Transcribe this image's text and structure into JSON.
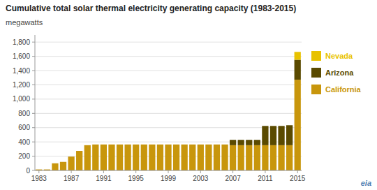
{
  "chart_data": {
    "type": "bar",
    "stacked": true,
    "title": "Cumulative total solar thermal electricity generating capacity (1983-2015)",
    "y_label": "megawatts",
    "annotations": [
      "eia"
    ],
    "categories": [
      "1983",
      null,
      null,
      null,
      "1987",
      null,
      null,
      null,
      "1991",
      null,
      null,
      null,
      "1995",
      null,
      null,
      null,
      "1999",
      null,
      null,
      null,
      "2003",
      null,
      null,
      null,
      "2007",
      null,
      null,
      null,
      "2011",
      null,
      null,
      null,
      "2015"
    ],
    "series": [
      {
        "name": "California",
        "color": "#c8960c",
        "values": [
          14,
          14,
          100,
          120,
          194,
          274,
          354,
          364,
          364,
          364,
          364,
          364,
          364,
          364,
          364,
          364,
          364,
          364,
          364,
          364,
          364,
          364,
          364,
          364,
          354,
          354,
          354,
          354,
          354,
          354,
          354,
          354,
          1272
        ]
      },
      {
        "name": "Arizona",
        "color": "#5a4a00",
        "values": [
          0,
          0,
          0,
          0,
          0,
          0,
          0,
          0,
          0,
          0,
          0,
          0,
          0,
          0,
          0,
          0,
          0,
          0,
          0,
          0,
          0,
          0,
          0,
          0,
          75,
          75,
          75,
          75,
          270,
          270,
          270,
          280,
          280
        ]
      },
      {
        "name": "Nevada",
        "color": "#e8c200",
        "values": [
          0,
          0,
          0,
          0,
          0,
          0,
          0,
          0,
          0,
          0,
          0,
          0,
          0,
          0,
          0,
          0,
          0,
          0,
          0,
          0,
          0,
          0,
          0,
          0,
          0,
          0,
          0,
          0,
          0,
          0,
          0,
          0,
          110
        ]
      }
    ],
    "ylim": [
      0,
      1900
    ],
    "yticks": [
      0,
      200,
      400,
      600,
      800,
      {
        "value": 1000,
        "label": "1,000"
      },
      {
        "value": 1200,
        "label": "1,200"
      },
      {
        "value": 1400,
        "label": "1,400"
      },
      {
        "value": 1600,
        "label": "1,600"
      },
      {
        "value": 1800,
        "label": "1,800"
      }
    ],
    "grid": true,
    "legend": "right"
  }
}
